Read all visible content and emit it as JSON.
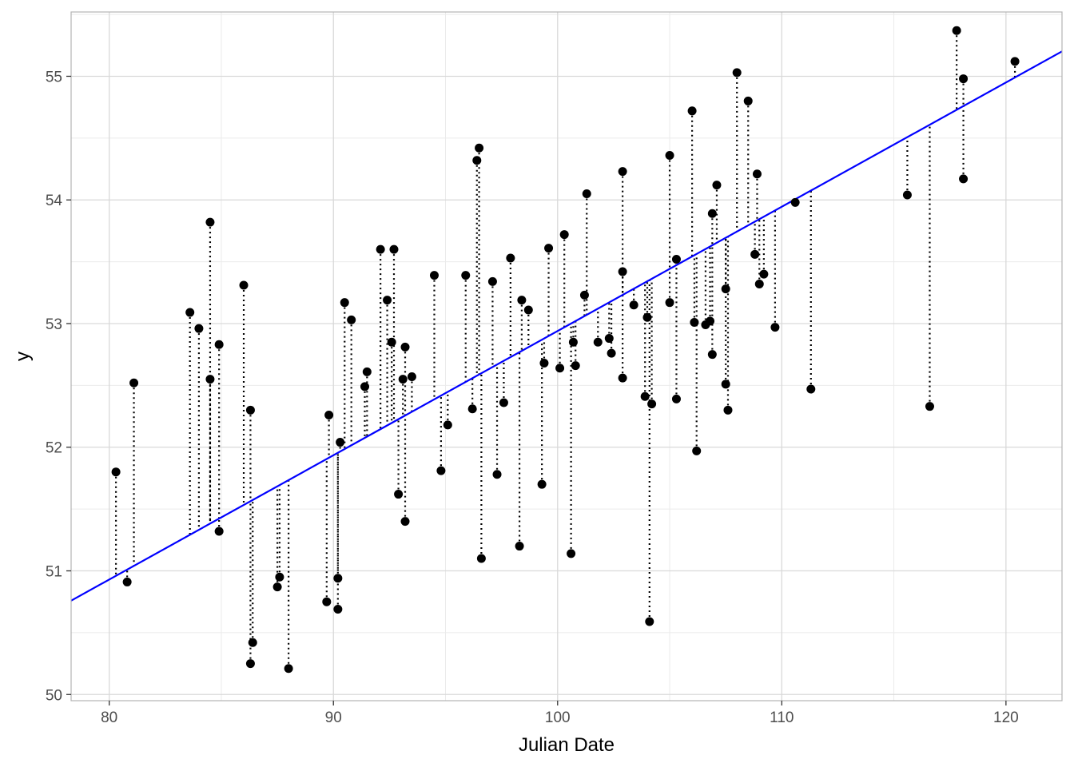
{
  "chart_data": {
    "type": "scatter",
    "title": "",
    "xlabel": "Julian Date",
    "ylabel": "y",
    "xlim": [
      78.3,
      122.5
    ],
    "ylim": [
      49.95,
      55.52
    ],
    "x_ticks": [
      80,
      90,
      100,
      110,
      120
    ],
    "y_ticks": [
      50,
      51,
      52,
      53,
      54,
      55
    ],
    "grid": true,
    "legend": "none",
    "colors": {
      "points": "#000000",
      "fit_line": "#0000ff",
      "residual": "#000000",
      "grid": "#d9d9d9",
      "panel_border": "#b3b3b3"
    },
    "fit_line": {
      "intercept": 42.89,
      "slope": 0.1005
    },
    "points": [
      {
        "x": 80.3,
        "y": 51.8
      },
      {
        "x": 80.8,
        "y": 50.91
      },
      {
        "x": 81.1,
        "y": 52.52
      },
      {
        "x": 83.6,
        "y": 53.09
      },
      {
        "x": 84.0,
        "y": 52.96
      },
      {
        "x": 84.5,
        "y": 53.82
      },
      {
        "x": 84.5,
        "y": 52.55
      },
      {
        "x": 84.9,
        "y": 52.83
      },
      {
        "x": 84.9,
        "y": 51.32
      },
      {
        "x": 86.0,
        "y": 53.31
      },
      {
        "x": 86.3,
        "y": 52.3
      },
      {
        "x": 86.4,
        "y": 50.42
      },
      {
        "x": 86.3,
        "y": 50.25
      },
      {
        "x": 87.5,
        "y": 50.87
      },
      {
        "x": 87.6,
        "y": 50.95
      },
      {
        "x": 88.0,
        "y": 50.21
      },
      {
        "x": 89.7,
        "y": 50.75
      },
      {
        "x": 89.8,
        "y": 52.26
      },
      {
        "x": 90.2,
        "y": 50.69
      },
      {
        "x": 90.2,
        "y": 50.94
      },
      {
        "x": 90.3,
        "y": 52.04
      },
      {
        "x": 90.5,
        "y": 53.17
      },
      {
        "x": 90.8,
        "y": 53.03
      },
      {
        "x": 91.4,
        "y": 52.49
      },
      {
        "x": 91.5,
        "y": 52.61
      },
      {
        "x": 92.1,
        "y": 53.6
      },
      {
        "x": 92.4,
        "y": 53.19
      },
      {
        "x": 92.7,
        "y": 53.6
      },
      {
        "x": 92.6,
        "y": 52.85
      },
      {
        "x": 92.9,
        "y": 51.62
      },
      {
        "x": 93.1,
        "y": 52.55
      },
      {
        "x": 93.2,
        "y": 52.81
      },
      {
        "x": 93.2,
        "y": 51.4
      },
      {
        "x": 93.5,
        "y": 52.57
      },
      {
        "x": 94.5,
        "y": 53.39
      },
      {
        "x": 94.8,
        "y": 51.81
      },
      {
        "x": 95.1,
        "y": 52.18
      },
      {
        "x": 95.9,
        "y": 53.39
      },
      {
        "x": 96.2,
        "y": 52.31
      },
      {
        "x": 96.4,
        "y": 54.32
      },
      {
        "x": 96.5,
        "y": 54.42
      },
      {
        "x": 96.6,
        "y": 51.1
      },
      {
        "x": 97.1,
        "y": 53.34
      },
      {
        "x": 97.3,
        "y": 51.78
      },
      {
        "x": 97.6,
        "y": 52.36
      },
      {
        "x": 97.9,
        "y": 53.53
      },
      {
        "x": 98.3,
        "y": 51.2
      },
      {
        "x": 98.4,
        "y": 53.19
      },
      {
        "x": 98.7,
        "y": 53.11
      },
      {
        "x": 99.3,
        "y": 51.7
      },
      {
        "x": 99.4,
        "y": 52.68
      },
      {
        "x": 99.6,
        "y": 53.61
      },
      {
        "x": 100.1,
        "y": 52.64
      },
      {
        "x": 100.3,
        "y": 53.72
      },
      {
        "x": 100.6,
        "y": 51.14
      },
      {
        "x": 100.7,
        "y": 52.85
      },
      {
        "x": 100.8,
        "y": 52.66
      },
      {
        "x": 101.2,
        "y": 53.23
      },
      {
        "x": 101.3,
        "y": 54.05
      },
      {
        "x": 101.8,
        "y": 52.85
      },
      {
        "x": 102.3,
        "y": 52.88
      },
      {
        "x": 102.4,
        "y": 52.76
      },
      {
        "x": 102.9,
        "y": 53.42
      },
      {
        "x": 102.9,
        "y": 54.23
      },
      {
        "x": 102.9,
        "y": 52.56
      },
      {
        "x": 103.4,
        "y": 53.15
      },
      {
        "x": 103.9,
        "y": 52.41
      },
      {
        "x": 104.0,
        "y": 53.05
      },
      {
        "x": 104.2,
        "y": 52.35
      },
      {
        "x": 104.1,
        "y": 50.59
      },
      {
        "x": 105.0,
        "y": 53.17
      },
      {
        "x": 105.0,
        "y": 54.36
      },
      {
        "x": 105.3,
        "y": 53.52
      },
      {
        "x": 105.3,
        "y": 52.39
      },
      {
        "x": 106.0,
        "y": 54.72
      },
      {
        "x": 106.1,
        "y": 53.01
      },
      {
        "x": 106.2,
        "y": 51.97
      },
      {
        "x": 106.6,
        "y": 52.99
      },
      {
        "x": 106.8,
        "y": 53.02
      },
      {
        "x": 106.9,
        "y": 53.89
      },
      {
        "x": 106.9,
        "y": 52.75
      },
      {
        "x": 107.1,
        "y": 54.12
      },
      {
        "x": 107.5,
        "y": 53.28
      },
      {
        "x": 107.5,
        "y": 52.51
      },
      {
        "x": 107.6,
        "y": 52.3
      },
      {
        "x": 108.0,
        "y": 55.03
      },
      {
        "x": 108.5,
        "y": 54.8
      },
      {
        "x": 108.8,
        "y": 53.56
      },
      {
        "x": 108.9,
        "y": 54.21
      },
      {
        "x": 109.0,
        "y": 53.32
      },
      {
        "x": 109.2,
        "y": 53.4
      },
      {
        "x": 109.7,
        "y": 52.97
      },
      {
        "x": 110.6,
        "y": 53.98
      },
      {
        "x": 111.3,
        "y": 52.47
      },
      {
        "x": 115.6,
        "y": 54.04
      },
      {
        "x": 116.6,
        "y": 52.33
      },
      {
        "x": 117.8,
        "y": 55.37
      },
      {
        "x": 118.1,
        "y": 54.98
      },
      {
        "x": 118.1,
        "y": 54.17
      },
      {
        "x": 120.4,
        "y": 55.12
      }
    ]
  }
}
